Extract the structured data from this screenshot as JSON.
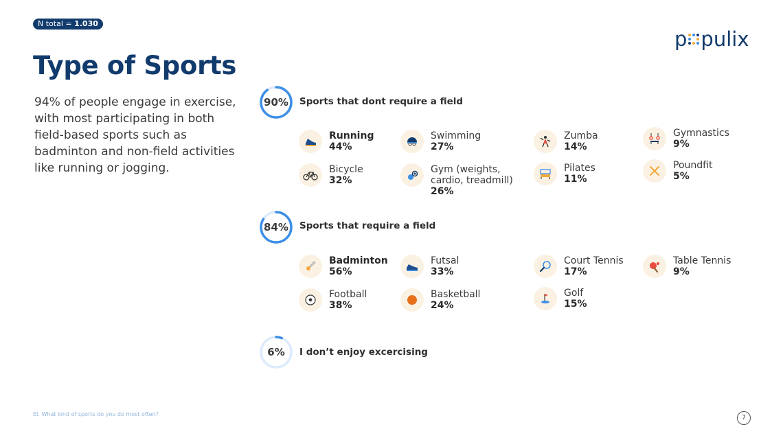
{
  "header": {
    "badge_label": "N total = ",
    "badge_value": "1.030",
    "title": "Type of Sports",
    "intro": "94% of people engage in exercise, with most participating in both field-based sports such as badminton and non-field activities like running or jogging.",
    "logo_left": "p",
    "logo_right": "pulix"
  },
  "colors": {
    "brand": "#123b6d",
    "ring": "#3d8fe6",
    "ring_track": "#dcebfb",
    "icon_bg": "#fbf1e3"
  },
  "sections": [
    {
      "percent_label": "90%",
      "percent": 90,
      "title": "Sports that dont require a field",
      "items": [
        {
          "name": "Running",
          "pct": "44%",
          "icon": "running-shoe-icon",
          "emph": true
        },
        {
          "name": "Swimming",
          "pct": "27%",
          "icon": "swim-cap-icon",
          "emph": false
        },
        {
          "name": "Zumba",
          "pct": "14%",
          "icon": "dancer-icon",
          "emph": false
        },
        {
          "name": "Gymnastics",
          "pct": "9%",
          "icon": "rings-icon",
          "emph": false
        },
        {
          "name": "Bicycle",
          "pct": "32%",
          "icon": "bicycle-icon",
          "emph": false
        },
        {
          "name": "Gym (weights,\ncardio, treadmill)",
          "pct": "26%",
          "icon": "kettlebell-icon",
          "emph": false
        },
        {
          "name": "Pilates",
          "pct": "11%",
          "icon": "pilates-icon",
          "emph": false
        },
        {
          "name": "Poundfit",
          "pct": "5%",
          "icon": "drumsticks-icon",
          "emph": false
        }
      ]
    },
    {
      "percent_label": "84%",
      "percent": 84,
      "title": "Sports that require a field",
      "items": [
        {
          "name": "Badminton",
          "pct": "56%",
          "icon": "shuttlecock-icon",
          "emph": true
        },
        {
          "name": "Futsal",
          "pct": "33%",
          "icon": "futsal-shoe-icon",
          "emph": false
        },
        {
          "name": "Court Tennis",
          "pct": "17%",
          "icon": "tennis-racket-icon",
          "emph": false
        },
        {
          "name": "Table Tennis",
          "pct": "9%",
          "icon": "ping-pong-icon",
          "emph": false
        },
        {
          "name": "Football",
          "pct": "38%",
          "icon": "football-icon",
          "emph": false
        },
        {
          "name": "Basketball",
          "pct": "24%",
          "icon": "basketball-icon",
          "emph": false
        },
        {
          "name": "Golf",
          "pct": "15%",
          "icon": "golf-flag-icon",
          "emph": false
        }
      ]
    },
    {
      "percent_label": "6%",
      "percent": 6,
      "title": "I don’t enjoy excercising",
      "items": []
    }
  ],
  "footer": {
    "question": "EI. What kind of sports do you do most often?",
    "page": "7"
  }
}
